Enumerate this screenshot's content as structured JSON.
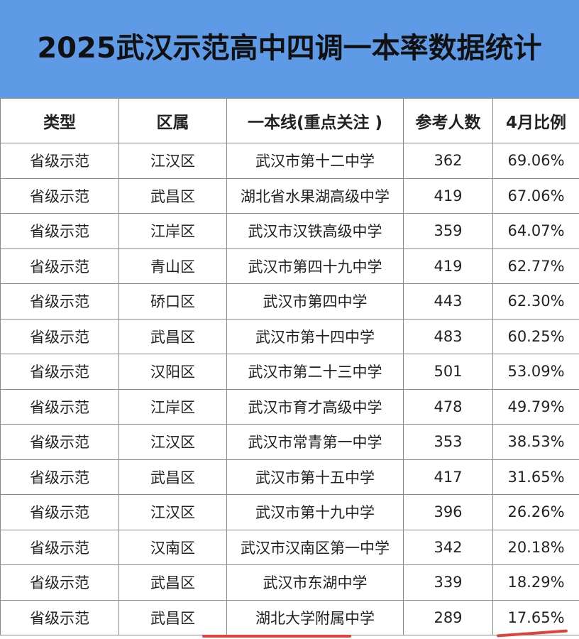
{
  "title": "2025武汉示范高中四调一本率数据统计",
  "colors": {
    "header_bg": "#5e9ae6",
    "underline": "#e0433b"
  },
  "table": {
    "headers": [
      "类型",
      "区属",
      "一本线(重点关注 )",
      "参考人数",
      "4月比例"
    ],
    "rows": [
      [
        "省级示范",
        "江汉区",
        "武汉市第十二中学",
        "362",
        "69.06%"
      ],
      [
        "省级示范",
        "武昌区",
        "湖北省水果湖高级中学",
        "419",
        "67.06%"
      ],
      [
        "省级示范",
        "江岸区",
        "武汉市汉铁高级中学",
        "359",
        "64.07%"
      ],
      [
        "省级示范",
        "青山区",
        "武汉市第四十九中学",
        "419",
        "62.77%"
      ],
      [
        "省级示范",
        "硚口区",
        "武汉市第四中学",
        "443",
        "62.30%"
      ],
      [
        "省级示范",
        "武昌区",
        "武汉市第十四中学",
        "483",
        "60.25%"
      ],
      [
        "省级示范",
        "汉阳区",
        "武汉市第二十三中学",
        "501",
        "53.09%"
      ],
      [
        "省级示范",
        "江岸区",
        "武汉市育才高级中学",
        "478",
        "49.79%"
      ],
      [
        "省级示范",
        "江汉区",
        "武汉市常青第一中学",
        "353",
        "38.53%"
      ],
      [
        "省级示范",
        "武昌区",
        "武汉市第十五中学",
        "417",
        "31.65%"
      ],
      [
        "省级示范",
        "江汉区",
        "武汉市第十九中学",
        "396",
        "26.26%"
      ],
      [
        "省级示范",
        "汉南区",
        "武汉市汉南区第一中学",
        "342",
        "20.18%"
      ],
      [
        "省级示范",
        "武昌区",
        "武汉市东湖中学",
        "339",
        "18.29%"
      ],
      [
        "省级示范",
        "武昌区",
        "湖北大学附属中学",
        "289",
        "17.65%"
      ]
    ]
  }
}
